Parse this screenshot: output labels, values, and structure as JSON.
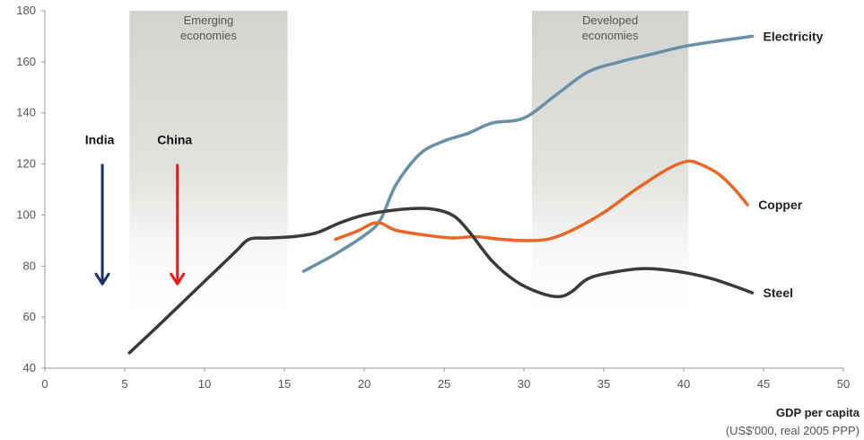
{
  "chart_data": {
    "type": "line",
    "xlabel": "GDP per capita",
    "xlabel_sub": "(US$'000, real 2005 PPP)",
    "xlim": [
      0,
      50
    ],
    "ylim": [
      40,
      180
    ],
    "x_ticks": [
      0,
      5,
      10,
      15,
      20,
      25,
      30,
      35,
      40,
      45,
      50
    ],
    "y_ticks": [
      40,
      60,
      80,
      100,
      120,
      140,
      160,
      180
    ],
    "regions": [
      {
        "id": "emerging",
        "lines": [
          "Emerging",
          "economies"
        ],
        "x_range": [
          5.3,
          15.2
        ],
        "color": "#d8d8d4"
      },
      {
        "id": "developed",
        "lines": [
          "Developed",
          "economies"
        ],
        "x_range": [
          30.5,
          40.3
        ],
        "color": "#d8d8d4"
      }
    ],
    "markers": [
      {
        "label": "India",
        "x": 3.6,
        "y_start": 120,
        "y_end": 73,
        "color": "#1b2f6b"
      },
      {
        "label": "China",
        "x": 8.3,
        "y_start": 120,
        "y_end": 73,
        "color": "#e8191c"
      }
    ],
    "series": [
      {
        "name": "Electricity",
        "color": "#6a90a8",
        "points": [
          [
            16.2,
            78
          ],
          [
            18,
            84
          ],
          [
            20,
            92
          ],
          [
            21,
            98
          ],
          [
            22,
            112
          ],
          [
            23.5,
            124
          ],
          [
            25,
            129
          ],
          [
            26.5,
            132
          ],
          [
            28,
            136
          ],
          [
            30,
            138
          ],
          [
            32,
            147
          ],
          [
            34,
            156
          ],
          [
            36,
            160
          ],
          [
            38,
            163
          ],
          [
            40,
            166
          ],
          [
            42,
            168
          ],
          [
            44.3,
            170
          ]
        ]
      },
      {
        "name": "Copper",
        "color": "#e8672a",
        "points": [
          [
            18.2,
            90.5
          ],
          [
            19.5,
            93.5
          ],
          [
            20.8,
            97
          ],
          [
            22,
            94
          ],
          [
            24,
            92
          ],
          [
            25.5,
            91
          ],
          [
            27,
            91.5
          ],
          [
            28.5,
            90.5
          ],
          [
            30,
            90
          ],
          [
            31.5,
            90.5
          ],
          [
            33,
            94
          ],
          [
            35,
            101
          ],
          [
            37,
            110
          ],
          [
            39,
            118
          ],
          [
            40.2,
            121
          ],
          [
            41,
            120
          ],
          [
            42.2,
            116
          ],
          [
            43.2,
            110
          ],
          [
            44,
            104
          ]
        ]
      },
      {
        "name": "Steel",
        "color": "#3a3a3a",
        "points": [
          [
            5.3,
            46
          ],
          [
            7,
            56
          ],
          [
            9,
            68
          ],
          [
            11,
            80
          ],
          [
            12,
            86
          ],
          [
            12.8,
            90.5
          ],
          [
            14,
            91
          ],
          [
            15.5,
            91.5
          ],
          [
            17,
            93
          ],
          [
            18.5,
            97
          ],
          [
            20,
            100
          ],
          [
            22,
            102
          ],
          [
            24,
            102.5
          ],
          [
            25.5,
            100
          ],
          [
            26.5,
            94
          ],
          [
            28,
            82
          ],
          [
            29.5,
            74
          ],
          [
            31,
            69.5
          ],
          [
            32.2,
            68
          ],
          [
            33,
            70
          ],
          [
            34,
            75
          ],
          [
            35.5,
            77.5
          ],
          [
            37.5,
            79
          ],
          [
            39.5,
            78
          ],
          [
            41.5,
            75.5
          ],
          [
            43,
            72.5
          ],
          [
            44.3,
            69.5
          ]
        ]
      }
    ]
  }
}
